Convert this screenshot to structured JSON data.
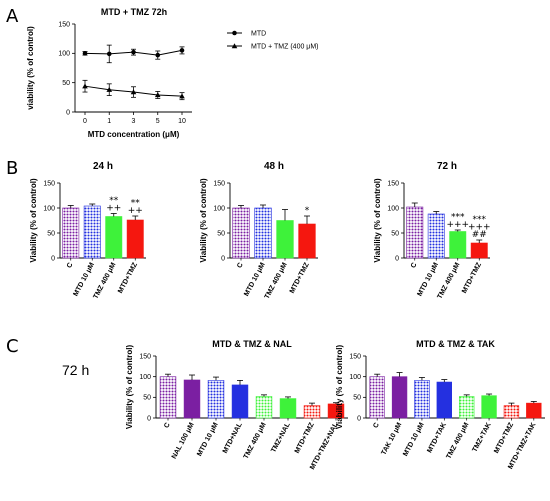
{
  "panel_labels": {
    "a": "A",
    "b": "B",
    "c": "C"
  },
  "side_label": "72 h",
  "colors": {
    "purple": "#7b1fa2",
    "blue": "#2430e0",
    "green": "#3ef23a",
    "red": "#f5170f"
  },
  "chart_data": [
    {
      "id": "A",
      "type": "line",
      "title": "MTD + TMZ 72h",
      "xlabel": "MTD concentration (μM)",
      "ylabel": "viability (% of control)",
      "x": [
        "0",
        "1",
        "3",
        "5",
        "10"
      ],
      "ylim": [
        0,
        150
      ],
      "yticks": [
        "0",
        "50",
        "100",
        "150"
      ],
      "series": [
        {
          "name": "MTD",
          "marker": "circle",
          "values": [
            100,
            99,
            102,
            97,
            105
          ],
          "err": [
            3,
            15,
            5,
            7,
            6
          ]
        },
        {
          "name": "MTD + TMZ (400 μM)",
          "marker": "triangle",
          "values": [
            44,
            38,
            34,
            29,
            27
          ],
          "err": [
            10,
            10,
            9,
            6,
            6
          ]
        }
      ]
    },
    {
      "id": "B1",
      "type": "bar",
      "title": "24 h",
      "ylabel": "Viability (% of control)",
      "ylim": [
        0,
        150
      ],
      "yticks": [
        "0",
        "50",
        "100",
        "150"
      ],
      "categories": [
        "C",
        "MTD 10 μM",
        "TMZ 400 μM",
        "MTD+TMZ"
      ],
      "values": [
        100,
        104,
        83,
        76
      ],
      "err": [
        5,
        4,
        6,
        8
      ],
      "colors": [
        "#7b1fa2",
        "#2430e0",
        "#3ef23a",
        "#f5170f"
      ],
      "patterns": [
        "dots",
        "dots",
        "solid",
        "solid"
      ],
      "sig": [
        "",
        "",
        "**\n++",
        "**\n++"
      ]
    },
    {
      "id": "B2",
      "type": "bar",
      "title": "48 h",
      "ylabel": "Viability (% of control)",
      "ylim": [
        0,
        150
      ],
      "yticks": [
        "0",
        "50",
        "100",
        "150"
      ],
      "categories": [
        "C",
        "MTD 10 μM",
        "TMZ 400 μM",
        "MTD+TMZ"
      ],
      "values": [
        100,
        100,
        75,
        68
      ],
      "err": [
        5,
        6,
        22,
        16
      ],
      "colors": [
        "#7b1fa2",
        "#2430e0",
        "#3ef23a",
        "#f5170f"
      ],
      "patterns": [
        "dots",
        "dots",
        "solid",
        "solid"
      ],
      "sig": [
        "",
        "",
        "",
        "*"
      ]
    },
    {
      "id": "B3",
      "type": "bar",
      "title": "72 h",
      "ylabel": "Viability (% of control)",
      "ylim": [
        0,
        150
      ],
      "yticks": [
        "0",
        "50",
        "100",
        "150"
      ],
      "categories": [
        "C",
        "MTD 10 μM",
        "TMZ 400 μM",
        "MTD+TMZ"
      ],
      "values": [
        102,
        88,
        53,
        30
      ],
      "err": [
        8,
        5,
        3,
        6
      ],
      "colors": [
        "#7b1fa2",
        "#2430e0",
        "#3ef23a",
        "#f5170f"
      ],
      "patterns": [
        "dots",
        "dots",
        "solid",
        "solid"
      ],
      "sig": [
        "",
        "",
        "***\n+++",
        "***\n+++\n##"
      ]
    },
    {
      "id": "C1",
      "type": "bar",
      "title": "MTD & TMZ & NAL",
      "ylabel": "Viability (% of control)",
      "ylim": [
        0,
        150
      ],
      "yticks": [
        "0",
        "50",
        "100",
        "150"
      ],
      "categories": [
        "C",
        "NAL 100 μM",
        "MTD 10 μM",
        "MTD+NAL",
        "TMZ 400 μM",
        "TMZ+NAL",
        "MTD+TMZ",
        "MTD+TMZ+NAL"
      ],
      "values": [
        100,
        92,
        91,
        80,
        52,
        47,
        30,
        34
      ],
      "err": [
        6,
        12,
        8,
        11,
        4,
        4,
        6,
        3
      ],
      "colors": [
        "#7b1fa2",
        "#7b1fa2",
        "#2430e0",
        "#2430e0",
        "#3ef23a",
        "#3ef23a",
        "#f5170f",
        "#f5170f"
      ],
      "patterns": [
        "dots",
        "solid",
        "dots",
        "solid",
        "dots",
        "solid",
        "dots",
        "solid"
      ],
      "sig": []
    },
    {
      "id": "C2",
      "type": "bar",
      "title": "MTD & TMZ & TAK",
      "ylabel": "Viability (% of control)",
      "ylim": [
        0,
        150
      ],
      "yticks": [
        "0",
        "50",
        "100",
        "150"
      ],
      "categories": [
        "C",
        "TAK 10 μM",
        "MTD 10 μM",
        "MTD+TAK",
        "TMZ 400 μM",
        "TMZ+TAK",
        "MTD+TMZ",
        "MTD+TMZ+TAK"
      ],
      "values": [
        100,
        100,
        91,
        87,
        52,
        54,
        30,
        36
      ],
      "err": [
        6,
        10,
        7,
        6,
        4,
        4,
        6,
        4
      ],
      "colors": [
        "#7b1fa2",
        "#7b1fa2",
        "#2430e0",
        "#2430e0",
        "#3ef23a",
        "#3ef23a",
        "#f5170f",
        "#f5170f"
      ],
      "patterns": [
        "dots",
        "solid",
        "dots",
        "solid",
        "dots",
        "solid",
        "dots",
        "solid"
      ],
      "sig": []
    }
  ]
}
